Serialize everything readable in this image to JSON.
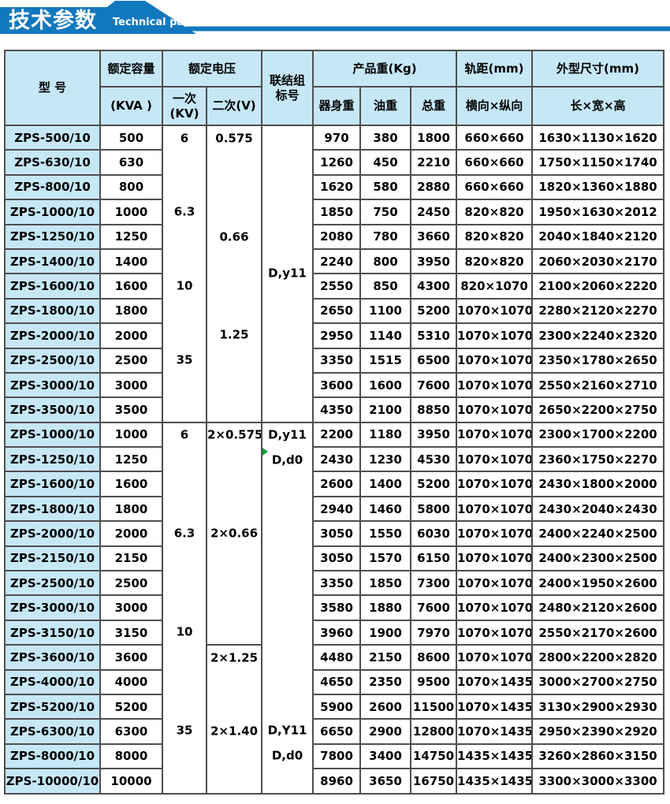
{
  "banner": {
    "title_cn": "技术参数",
    "title_en": "Technical parameter"
  },
  "colors": {
    "banner_blue": "#1278be",
    "header_light_blue": "#c6e7f6",
    "grid_border": "#4f4f4f",
    "comment_marker_green": "#0a9e3c",
    "text": "#000000"
  },
  "table": {
    "header": {
      "model": "型 号",
      "capacity_top": "额定容量",
      "capacity_bottom": "(KVA )",
      "voltage": "额定电压",
      "voltage_primary": "一次\n(KV)",
      "voltage_secondary": "二次(V)",
      "connection": "联结组\n标号",
      "weight": "产品重(Kg)",
      "weight_body": "器身重",
      "weight_oil": "油重",
      "weight_total": "总重",
      "gauge_top": "轨距(mm)",
      "gauge_bottom": "横向×纵向",
      "dims_top": "外型尺寸(mm)",
      "dims_bottom": "长×宽×高"
    },
    "sections": [
      {
        "primary_kv": {
          "span": 12,
          "values": [
            {
              "label": "6",
              "at": 1
            },
            {
              "label": "6.3",
              "at": 4
            },
            {
              "label": "10",
              "at": 7
            },
            {
              "label": "35",
              "at": 10
            }
          ]
        },
        "secondary_v": [
          {
            "span": 12,
            "values": [
              {
                "label": "0.575",
                "at": 1
              },
              {
                "label": "0.66",
                "at": 5
              },
              {
                "label": "1.25",
                "at": 9
              }
            ]
          }
        ],
        "connection": {
          "span": 12,
          "values": [
            {
              "label": "D,y11",
              "at": 6.5
            }
          ]
        },
        "rows": [
          {
            "model": "ZPS-500/10",
            "kva": "500",
            "body": "970",
            "oil": "380",
            "total": "1800",
            "gauge": "660×660",
            "dims": "1630×1130×1620"
          },
          {
            "model": "ZPS-630/10",
            "kva": "630",
            "body": "1260",
            "oil": "450",
            "total": "2210",
            "gauge": "660×660",
            "dims": "1750×1150×1740"
          },
          {
            "model": "ZPS-800/10",
            "kva": "800",
            "body": "1620",
            "oil": "580",
            "total": "2880",
            "gauge": "660×660",
            "dims": "1820×1360×1880"
          },
          {
            "model": "ZPS-1000/10",
            "kva": "1000",
            "body": "1850",
            "oil": "750",
            "total": "2450",
            "gauge": "820×820",
            "dims": "1950×1630×2012"
          },
          {
            "model": "ZPS-1250/10",
            "kva": "1250",
            "body": "2080",
            "oil": "780",
            "total": "3660",
            "gauge": "820×820",
            "dims": "2040×1840×2120"
          },
          {
            "model": "ZPS-1400/10",
            "kva": "1400",
            "body": "2240",
            "oil": "800",
            "total": "3950",
            "gauge": "820×820",
            "dims": "2060×2030×2170"
          },
          {
            "model": "ZPS-1600/10",
            "kva": "1600",
            "body": "2550",
            "oil": "850",
            "total": "4300",
            "gauge": "820×1070",
            "dims": "2100×2060×2220"
          },
          {
            "model": "ZPS-1800/10",
            "kva": "1800",
            "body": "2650",
            "oil": "1100",
            "total": "5200",
            "gauge": "1070×1070",
            "dims": "2280×2120×2270"
          },
          {
            "model": "ZPS-2000/10",
            "kva": "2000",
            "body": "2950",
            "oil": "1140",
            "total": "5310",
            "gauge": "1070×1070",
            "dims": "2300×2240×2320"
          },
          {
            "model": "ZPS-2500/10",
            "kva": "2500",
            "body": "3350",
            "oil": "1515",
            "total": "6500",
            "gauge": "1070×1070",
            "dims": "2350×1780×2650"
          },
          {
            "model": "ZPS-3000/10",
            "kva": "3000",
            "body": "3600",
            "oil": "1600",
            "total": "7600",
            "gauge": "1070×1070",
            "dims": "2550×2160×2710"
          },
          {
            "model": "ZPS-3500/10",
            "kva": "3500",
            "body": "4350",
            "oil": "2100",
            "total": "8850",
            "gauge": "1070×1070",
            "dims": "2650×2200×2750"
          }
        ]
      },
      {
        "primary_kv": {
          "span": 15,
          "values": [
            {
              "label": "6",
              "at": 1
            },
            {
              "label": "6.3",
              "at": 5
            },
            {
              "label": "10",
              "at": 9
            },
            {
              "label": "35",
              "at": 13
            }
          ]
        },
        "secondary_v": [
          {
            "span": 9,
            "values": [
              {
                "label": "2×0.575",
                "at": 1
              },
              {
                "label": "2×0.66",
                "at": 5
              }
            ]
          },
          {
            "span": 6,
            "values": [
              {
                "label": "2×1.25",
                "at": 1
              },
              {
                "label": "2×1.40",
                "at": 4
              }
            ]
          }
        ],
        "connection": {
          "span": 15,
          "values": [
            {
              "label": "D,y11",
              "at": 1
            },
            {
              "label": "D,d0",
              "at": 2,
              "marker": true
            },
            {
              "label": "D,Y11",
              "at": 13
            },
            {
              "label": "D,d0",
              "at": 14
            }
          ]
        },
        "rows": [
          {
            "model": "ZPS-1000/10",
            "kva": "1000",
            "body": "2200",
            "oil": "1180",
            "total": "3950",
            "gauge": "1070×1070",
            "dims": "2300×1700×2200"
          },
          {
            "model": "ZPS-1250/10",
            "kva": "1250",
            "body": "2430",
            "oil": "1230",
            "total": "4530",
            "gauge": "1070×1070",
            "dims": "2360×1750×2270"
          },
          {
            "model": "ZPS-1600/10",
            "kva": "1600",
            "body": "2600",
            "oil": "1400",
            "total": "5200",
            "gauge": "1070×1070",
            "dims": "2430×1800×2000"
          },
          {
            "model": "ZPS-1800/10",
            "kva": "1800",
            "body": "2940",
            "oil": "1460",
            "total": "5800",
            "gauge": "1070×1070",
            "dims": "2430×2040×2430"
          },
          {
            "model": "ZPS-2000/10",
            "kva": "2000",
            "body": "3050",
            "oil": "1550",
            "total": "6030",
            "gauge": "1070×1070",
            "dims": "2400×2240×2500"
          },
          {
            "model": "ZPS-2150/10",
            "kva": "2150",
            "body": "3050",
            "oil": "1570",
            "total": "6150",
            "gauge": "1070×1070",
            "dims": "2400×2300×2500"
          },
          {
            "model": "ZPS-2500/10",
            "kva": "2500",
            "body": "3350",
            "oil": "1850",
            "total": "7300",
            "gauge": "1070×1070",
            "dims": "2400×1950×2600"
          },
          {
            "model": "ZPS-3000/10",
            "kva": "3000",
            "body": "3580",
            "oil": "1880",
            "total": "7600",
            "gauge": "1070×1070",
            "dims": "2480×2120×2600"
          },
          {
            "model": "ZPS-3150/10",
            "kva": "3150",
            "body": "3960",
            "oil": "1900",
            "total": "7970",
            "gauge": "1070×1070",
            "dims": "2550×2170×2600"
          },
          {
            "model": "ZPS-3600/10",
            "kva": "3600",
            "body": "4480",
            "oil": "2150",
            "total": "8600",
            "gauge": "1070×1070",
            "dims": "2800×2200×2820"
          },
          {
            "model": "ZPS-4000/10",
            "kva": "4000",
            "body": "4650",
            "oil": "2350",
            "total": "9500",
            "gauge": "1070×1435",
            "dims": "3000×2700×2750"
          },
          {
            "model": "ZPS-5200/10",
            "kva": "5200",
            "body": "5900",
            "oil": "2600",
            "total": "11500",
            "gauge": "1070×1435",
            "dims": "3130×2900×2930"
          },
          {
            "model": "ZPS-6300/10",
            "kva": "6300",
            "body": "6650",
            "oil": "2900",
            "total": "12800",
            "gauge": "1070×1435",
            "dims": "2950×2390×2920"
          },
          {
            "model": "ZPS-8000/10",
            "kva": "8000",
            "body": "7800",
            "oil": "3400",
            "total": "14750",
            "gauge": "1435×1435",
            "dims": "3260×2860×3150"
          },
          {
            "model": "ZPS-10000/10",
            "kva": "10000",
            "body": "8960",
            "oil": "3650",
            "total": "16750",
            "gauge": "1435×1435",
            "dims": "3300×3000×3300"
          }
        ]
      }
    ]
  }
}
